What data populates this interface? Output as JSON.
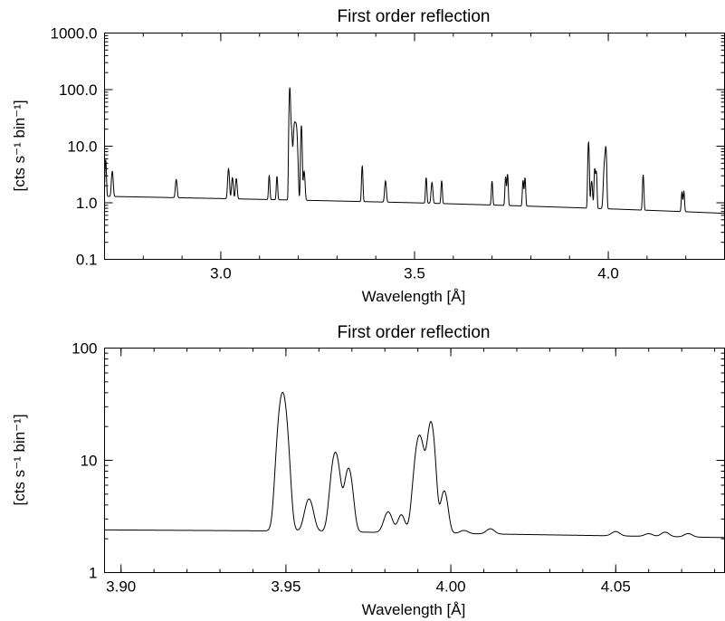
{
  "chart_data": [
    {
      "type": "line",
      "title": "First order reflection",
      "xlabel": "Wavelength [Å]",
      "ylabel": "[cts s⁻¹ bin⁻¹]",
      "yscale": "log",
      "xlim": [
        2.7,
        4.3
      ],
      "ylim": [
        0.1,
        1000.0
      ],
      "x_ticks": [
        3.0,
        3.5,
        4.0
      ],
      "x_tick_labels": [
        "3.0",
        "3.5",
        "4.0"
      ],
      "y_ticks": [
        0.1,
        1.0,
        10.0,
        100.0,
        1000.0
      ],
      "y_tick_labels": [
        "0.1",
        "1.0",
        "10.0",
        "100.0",
        "1000.0"
      ],
      "continuum": [
        [
          2.7,
          1.3
        ],
        [
          3.5,
          1.0
        ],
        [
          4.3,
          0.65
        ]
      ],
      "lines": [
        [
          2.703,
          4.5,
          0.0015
        ],
        [
          2.72,
          2.3,
          0.002
        ],
        [
          2.885,
          1.35,
          0.002
        ],
        [
          3.02,
          2.8,
          0.002
        ],
        [
          3.03,
          1.6,
          0.002
        ],
        [
          3.04,
          1.5,
          0.002
        ],
        [
          3.125,
          1.9,
          0.0015
        ],
        [
          3.145,
          1.8,
          0.0015
        ],
        [
          3.178,
          105,
          0.0015
        ],
        [
          3.182,
          20,
          0.002
        ],
        [
          3.19,
          22,
          0.0025
        ],
        [
          3.195,
          20,
          0.0025
        ],
        [
          3.208,
          22,
          0.0015
        ],
        [
          3.215,
          2.5,
          0.002
        ],
        [
          3.365,
          3.4,
          0.0015
        ],
        [
          3.425,
          1.4,
          0.002
        ],
        [
          3.53,
          1.8,
          0.0015
        ],
        [
          3.545,
          1.3,
          0.002
        ],
        [
          3.57,
          1.5,
          0.0015
        ],
        [
          3.7,
          1.5,
          0.0015
        ],
        [
          3.735,
          2.0,
          0.0015
        ],
        [
          3.74,
          2.3,
          0.0015
        ],
        [
          3.78,
          1.6,
          0.0015
        ],
        [
          3.785,
          1.9,
          0.0015
        ],
        [
          3.949,
          11.0,
          0.0015
        ],
        [
          3.957,
          1.6,
          0.002
        ],
        [
          3.965,
          3.2,
          0.0015
        ],
        [
          3.969,
          2.8,
          0.0015
        ],
        [
          3.991,
          5.0,
          0.0025
        ],
        [
          3.994,
          6.5,
          0.0015
        ],
        [
          4.09,
          2.4,
          0.0015
        ],
        [
          4.19,
          0.85,
          0.0015
        ],
        [
          4.195,
          0.9,
          0.0015
        ]
      ]
    },
    {
      "type": "line",
      "title": "First order reflection",
      "xlabel": "Wavelength [Å]",
      "ylabel": "[cts s⁻¹ bin⁻¹]",
      "yscale": "log",
      "xlim": [
        3.895,
        4.083
      ],
      "ylim": [
        1,
        100
      ],
      "x_ticks": [
        3.9,
        3.95,
        4.0,
        4.05
      ],
      "x_tick_labels": [
        "3.90",
        "3.95",
        "4.00",
        "4.05"
      ],
      "y_ticks": [
        1,
        10,
        100
      ],
      "y_tick_labels": [
        "1",
        "10",
        "100"
      ],
      "continuum": [
        [
          3.895,
          2.4
        ],
        [
          3.947,
          2.35
        ],
        [
          4.083,
          2.05
        ]
      ],
      "lines": [
        [
          3.949,
          38.0,
          0.0012
        ],
        [
          3.957,
          2.2,
          0.0012
        ],
        [
          3.965,
          9.5,
          0.0012
        ],
        [
          3.969,
          6.2,
          0.0011
        ],
        [
          3.981,
          1.2,
          0.0012
        ],
        [
          3.985,
          1.0,
          0.001
        ],
        [
          3.9905,
          14.5,
          0.0013
        ],
        [
          3.994,
          19.5,
          0.001
        ],
        [
          3.998,
          3.1,
          0.001
        ],
        [
          4.004,
          0.15,
          0.0012
        ],
        [
          4.012,
          0.25,
          0.0012
        ],
        [
          4.05,
          0.2,
          0.0012
        ],
        [
          4.06,
          0.12,
          0.0012
        ],
        [
          4.065,
          0.2,
          0.0012
        ],
        [
          4.072,
          0.15,
          0.0012
        ]
      ]
    }
  ]
}
